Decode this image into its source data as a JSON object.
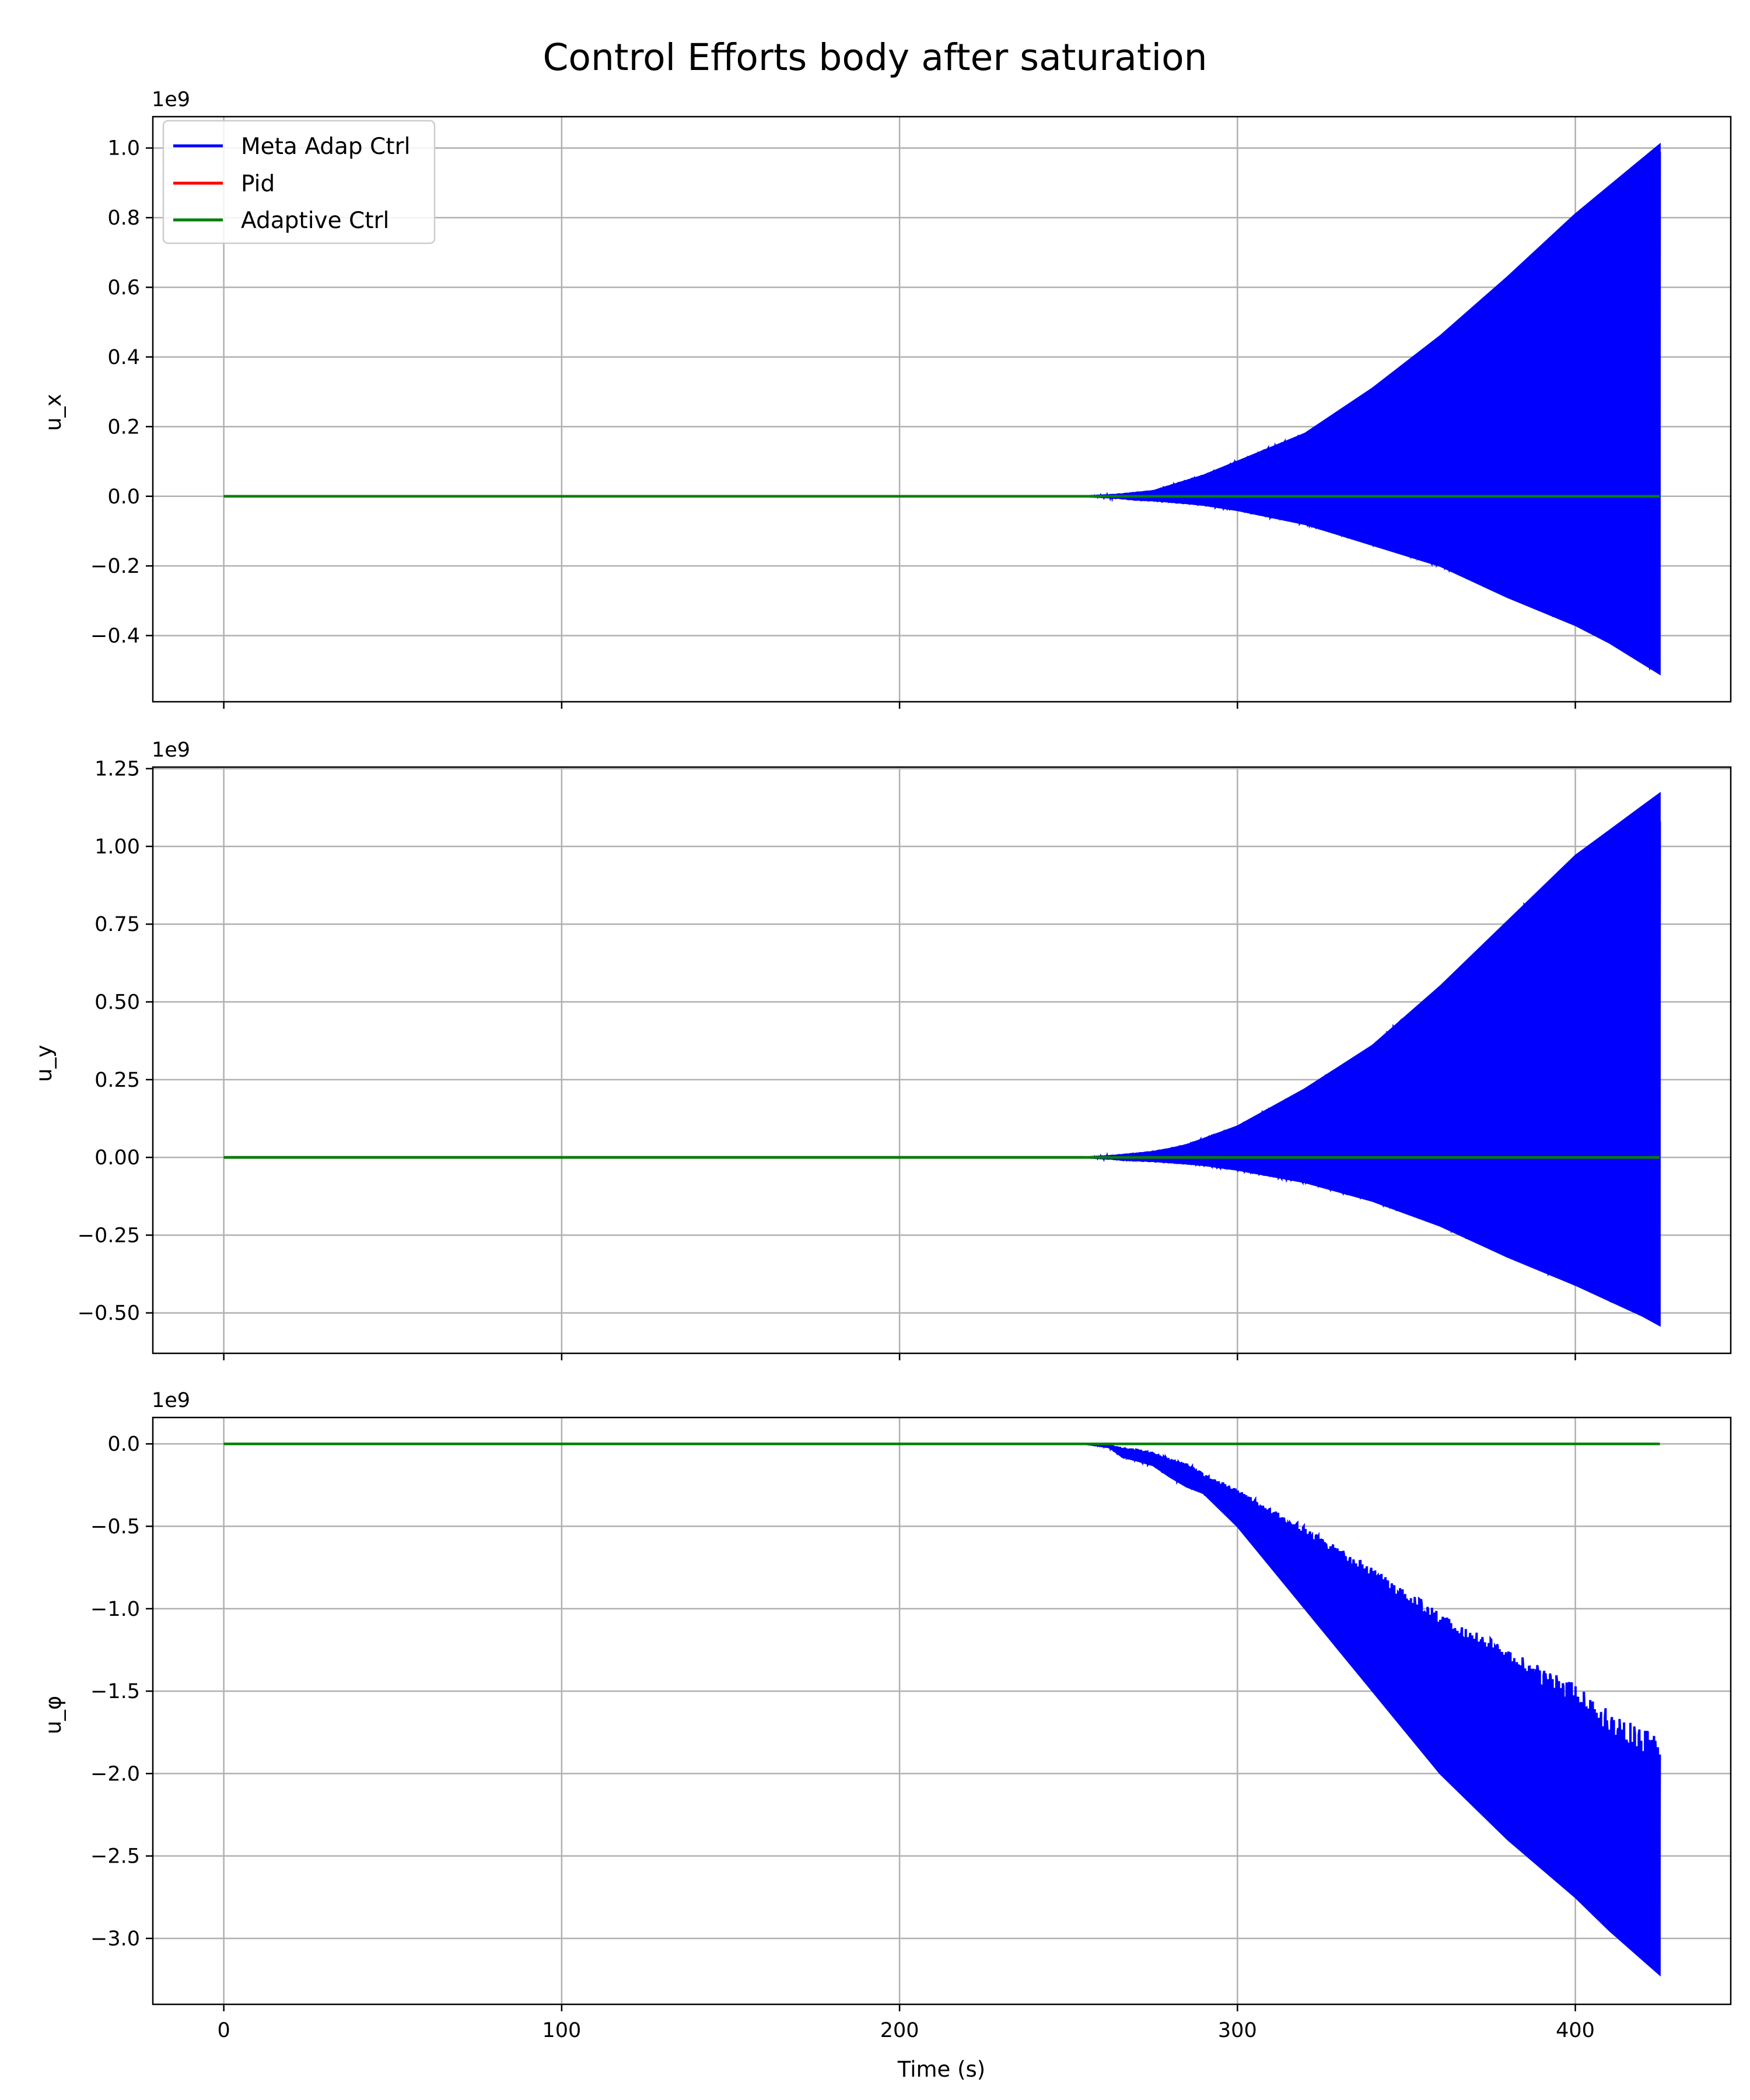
{
  "title": "Control Efforts body after saturation",
  "xlabel": "Time (s)",
  "xticks": [
    "0",
    "100",
    "200",
    "300",
    "400"
  ],
  "legend": {
    "placement": "top-left of first panel",
    "entries": [
      {
        "label": "Meta Adap Ctrl",
        "color": "#0000ff"
      },
      {
        "label": "Pid",
        "color": "#ff0000"
      },
      {
        "label": "Adaptive Ctrl",
        "color": "#008000"
      }
    ]
  },
  "panels": [
    {
      "ylabel": "u_x",
      "offset": "1e9",
      "yticks": [
        "1.0",
        "0.8",
        "0.6",
        "0.4",
        "0.2",
        "0.0",
        "−0.2",
        "−0.4"
      ]
    },
    {
      "ylabel": "u_y",
      "offset": "1e9",
      "yticks": [
        "1.25",
        "1.00",
        "0.75",
        "0.50",
        "0.25",
        "0.00",
        "−0.25",
        "−0.50"
      ]
    },
    {
      "ylabel": "u_φ",
      "offset": "1e9",
      "yticks": [
        "0.0",
        "−0.5",
        "−1.0",
        "−1.5",
        "−2.0",
        "−2.5",
        "−3.0"
      ]
    }
  ],
  "chart_data": [
    {
      "type": "line",
      "title": "Control Efforts body after saturation",
      "xlabel": "",
      "ylabel": "u_x",
      "y_scale_offset": "1e9",
      "xlim": [
        -21,
        446
      ],
      "ylim": [
        -0.59,
        1.09
      ],
      "grid": true,
      "legend": "top-left",
      "x_ticks": [
        0,
        100,
        200,
        300,
        400
      ],
      "y_ticks": [
        -0.4,
        -0.2,
        0.0,
        0.2,
        0.4,
        0.6,
        0.8,
        1.0
      ],
      "series": [
        {
          "name": "Meta Adap Ctrl",
          "color": "#0000ff",
          "kind": "envelope",
          "x": [
            255,
            262,
            266,
            270,
            275,
            280,
            285,
            290,
            300,
            320,
            340,
            360,
            380,
            400,
            410,
            420,
            425
          ],
          "upper": [
            0.0,
            0.003,
            0.006,
            0.01,
            0.015,
            0.03,
            0.045,
            0.06,
            0.1,
            0.18,
            0.31,
            0.46,
            0.63,
            0.81,
            0.89,
            0.97,
            1.01
          ],
          "lower": [
            0.0,
            -0.003,
            -0.006,
            -0.01,
            -0.012,
            -0.016,
            -0.02,
            -0.025,
            -0.04,
            -0.08,
            -0.14,
            -0.2,
            -0.29,
            -0.37,
            -0.42,
            -0.48,
            -0.51
          ]
        },
        {
          "name": "Pid",
          "color": "#ff0000",
          "x": [
            0,
            425
          ],
          "y": [
            0,
            0
          ]
        },
        {
          "name": "Adaptive Ctrl",
          "color": "#008000",
          "x": [
            0,
            425
          ],
          "y": [
            0,
            0
          ]
        }
      ]
    },
    {
      "type": "line",
      "xlabel": "",
      "ylabel": "u_y",
      "y_scale_offset": "1e9",
      "xlim": [
        -21,
        446
      ],
      "ylim": [
        -0.63,
        1.255
      ],
      "grid": true,
      "x_ticks": [
        0,
        100,
        200,
        300,
        400
      ],
      "y_ticks": [
        -0.5,
        -0.25,
        0.0,
        0.25,
        0.5,
        0.75,
        1.0,
        1.25
      ],
      "series": [
        {
          "name": "Meta Adap Ctrl",
          "color": "#0000ff",
          "kind": "envelope",
          "x": [
            255,
            262,
            266,
            270,
            275,
            280,
            285,
            290,
            300,
            320,
            340,
            360,
            380,
            400,
            410,
            420,
            425
          ],
          "upper": [
            0.0,
            0.004,
            0.008,
            0.012,
            0.018,
            0.028,
            0.04,
            0.06,
            0.1,
            0.22,
            0.36,
            0.55,
            0.76,
            0.97,
            1.05,
            1.13,
            1.17
          ],
          "lower": [
            0.0,
            -0.004,
            -0.008,
            -0.01,
            -0.012,
            -0.016,
            -0.02,
            -0.025,
            -0.04,
            -0.08,
            -0.14,
            -0.22,
            -0.32,
            -0.41,
            -0.46,
            -0.51,
            -0.54
          ]
        },
        {
          "name": "Pid",
          "color": "#ff0000",
          "x": [
            0,
            425
          ],
          "y": [
            0,
            0
          ]
        },
        {
          "name": "Adaptive Ctrl",
          "color": "#008000",
          "x": [
            0,
            425
          ],
          "y": [
            0,
            0
          ]
        }
      ]
    },
    {
      "type": "line",
      "xlabel": "Time (s)",
      "ylabel": "u_φ",
      "y_scale_offset": "1e9",
      "xlim": [
        -21,
        446
      ],
      "ylim": [
        -3.4,
        0.16
      ],
      "grid": true,
      "x_ticks": [
        0,
        100,
        200,
        300,
        400
      ],
      "y_ticks": [
        -3.0,
        -2.5,
        -2.0,
        -1.5,
        -1.0,
        -0.5,
        0.0
      ],
      "series": [
        {
          "name": "Meta Adap Ctrl",
          "color": "#0000ff",
          "kind": "envelope",
          "x": [
            255,
            262,
            266,
            270,
            275,
            280,
            285,
            290,
            300,
            320,
            340,
            360,
            380,
            400,
            410,
            420,
            425
          ],
          "upper": [
            0.0,
            -0.01,
            -0.03,
            -0.04,
            -0.06,
            -0.1,
            -0.13,
            -0.2,
            -0.3,
            -0.55,
            -0.82,
            -1.1,
            -1.35,
            -1.58,
            -1.76,
            -1.88,
            -1.92
          ],
          "lower": [
            0.0,
            -0.02,
            -0.08,
            -0.1,
            -0.13,
            -0.2,
            -0.26,
            -0.3,
            -0.5,
            -1.0,
            -1.5,
            -2.0,
            -2.4,
            -2.75,
            -2.95,
            -3.13,
            -3.22
          ]
        },
        {
          "name": "Pid",
          "color": "#ff0000",
          "x": [
            0,
            425
          ],
          "y": [
            0,
            0
          ]
        },
        {
          "name": "Adaptive Ctrl",
          "color": "#008000",
          "x": [
            0,
            425
          ],
          "y": [
            0,
            0
          ]
        }
      ]
    }
  ]
}
